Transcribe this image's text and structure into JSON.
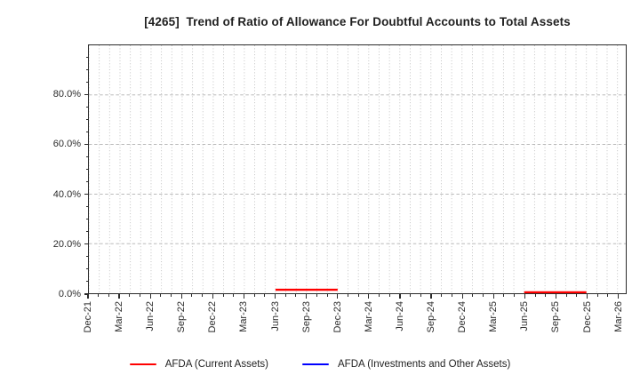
{
  "title": "[4265]  Trend of Ratio of Allowance For Doubtful Accounts to Total Assets",
  "chart_data": {
    "type": "line",
    "title": "[4265]  Trend of Ratio of Allowance For Doubtful Accounts to Total Assets",
    "categories": [
      "Dec-21",
      "Mar-22",
      "Jun-22",
      "Sep-22",
      "Dec-22",
      "Mar-23",
      "Jun-23",
      "Sep-23",
      "Dec-23",
      "Mar-24",
      "Jun-24",
      "Sep-24",
      "Dec-24",
      "Mar-25",
      "Jun-25",
      "Sep-25",
      "Dec-25",
      "Mar-26"
    ],
    "series": [
      {
        "name": "AFDA (Current Assets)",
        "color": "#ff0000",
        "values": [
          null,
          null,
          null,
          null,
          null,
          null,
          1.4,
          1.4,
          1.4,
          null,
          null,
          null,
          null,
          null,
          0.4,
          0.4,
          0.4,
          null
        ]
      },
      {
        "name": "AFDA (Investments and Other Assets)",
        "color": "#0000ff",
        "values": [
          null,
          null,
          null,
          null,
          null,
          null,
          null,
          null,
          null,
          null,
          null,
          null,
          null,
          null,
          null,
          null,
          null,
          null
        ]
      }
    ],
    "xlabel": "",
    "ylabel": "",
    "unit": "%",
    "ylim": [
      0,
      100
    ],
    "y_ticks": [
      {
        "value": 0,
        "label": "0.0%"
      },
      {
        "value": 20,
        "label": "20.0%"
      },
      {
        "value": 40,
        "label": "40.0%"
      },
      {
        "value": 60,
        "label": "60.0%"
      },
      {
        "value": 80,
        "label": "80.0%"
      }
    ],
    "y_minor_step": 5,
    "months_per_category": 3,
    "x_right_pad_months": 0.8,
    "grid": {
      "horizontal_major": "dashed",
      "vertical_minor_monthly": "dotted"
    },
    "legend_position": "bottom-center"
  },
  "colors": {
    "background": "#ffffff",
    "axis": "#2b2b2b",
    "grid": "#b5b5b5",
    "title_text": "#1f1f1f",
    "tick_label": "#2b2b2b",
    "series_red": "#ff0000",
    "series_blue": "#0000ff"
  }
}
